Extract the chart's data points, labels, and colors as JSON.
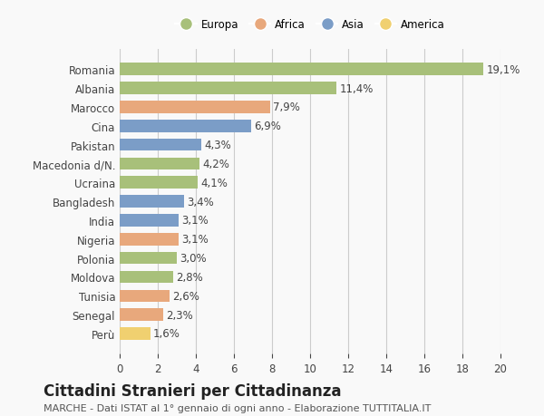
{
  "categories": [
    "Romania",
    "Albania",
    "Marocco",
    "Cina",
    "Pakistan",
    "Macedonia d/N.",
    "Ucraina",
    "Bangladesh",
    "India",
    "Nigeria",
    "Polonia",
    "Moldova",
    "Tunisia",
    "Senegal",
    "Perù"
  ],
  "values": [
    19.1,
    11.4,
    7.9,
    6.9,
    4.3,
    4.2,
    4.1,
    3.4,
    3.1,
    3.1,
    3.0,
    2.8,
    2.6,
    2.3,
    1.6
  ],
  "labels": [
    "19,1%",
    "11,4%",
    "7,9%",
    "6,9%",
    "4,3%",
    "4,2%",
    "4,1%",
    "3,4%",
    "3,1%",
    "3,1%",
    "3,0%",
    "2,8%",
    "2,6%",
    "2,3%",
    "1,6%"
  ],
  "continents": [
    "Europa",
    "Europa",
    "Africa",
    "Asia",
    "Asia",
    "Europa",
    "Europa",
    "Asia",
    "Asia",
    "Africa",
    "Europa",
    "Europa",
    "Africa",
    "Africa",
    "America"
  ],
  "continent_colors": {
    "Europa": "#a8c07a",
    "Africa": "#e8a87c",
    "Asia": "#7b9dc7",
    "America": "#f0d070"
  },
  "legend_order": [
    "Europa",
    "Africa",
    "Asia",
    "America"
  ],
  "legend_colors": [
    "#a8c07a",
    "#e8a87c",
    "#7b9dc7",
    "#f0d070"
  ],
  "xlim": [
    0,
    20
  ],
  "xticks": [
    0,
    2,
    4,
    6,
    8,
    10,
    12,
    14,
    16,
    18,
    20
  ],
  "title": "Cittadini Stranieri per Cittadinanza",
  "subtitle": "MARCHE - Dati ISTAT al 1° gennaio di ogni anno - Elaborazione TUTTITALIA.IT",
  "bg_color": "#f9f9f9",
  "grid_color": "#cccccc",
  "bar_height": 0.65,
  "label_fontsize": 8.5,
  "tick_fontsize": 8.5,
  "title_fontsize": 12,
  "subtitle_fontsize": 8
}
